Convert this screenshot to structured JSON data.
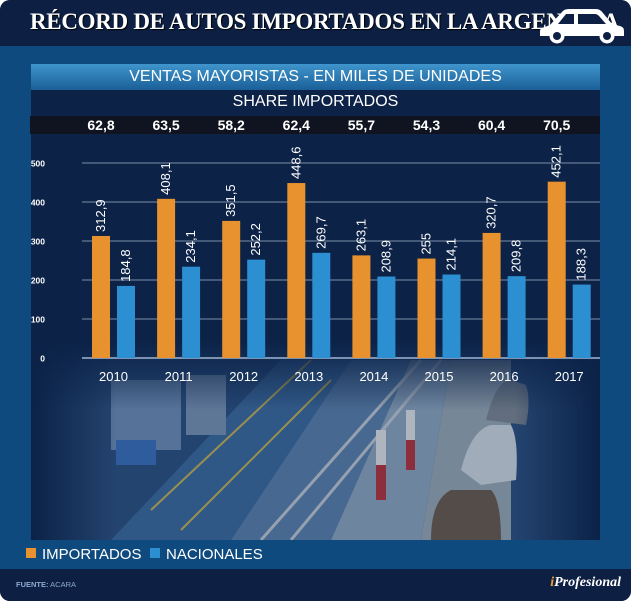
{
  "header": {
    "title": "RÉCORD DE AUTOS IMPORTADOS EN LA ARGENTINA",
    "icon": "car-icon"
  },
  "subtitle": "VENTAS MAYORISTAS - EN MILES DE UNIDADES",
  "share": {
    "label": "SHARE IMPORTADOS",
    "values": [
      "62,8",
      "63,5",
      "58,2",
      "62,4",
      "55,7",
      "54,3",
      "60,4",
      "70,5"
    ]
  },
  "legend": {
    "items": [
      {
        "label": "IMPORTADOS",
        "color": "#e8922f"
      },
      {
        "label": "NACIONALES",
        "color": "#2b8fd1"
      }
    ]
  },
  "footer": {
    "source_label": "FUENTE:",
    "source_value": "ACARA",
    "logo_i": "i",
    "logo_rest": "Profesional"
  },
  "chart_data": {
    "type": "bar",
    "title": "VENTAS MAYORISTAS - EN MILES DE UNIDADES",
    "xlabel": "",
    "ylabel": "",
    "categories": [
      "2010",
      "2011",
      "2012",
      "2013",
      "2014",
      "2015",
      "2016",
      "2017"
    ],
    "series": [
      {
        "name": "IMPORTADOS",
        "color": "#e8922f",
        "values": [
          312.9,
          408.1,
          351.5,
          448.6,
          263.1,
          255,
          320.7,
          452.1
        ],
        "labels": [
          "312,9",
          "408,1",
          "351,5",
          "448,6",
          "263,1",
          "255",
          "320,7",
          "452,1"
        ]
      },
      {
        "name": "NACIONALES",
        "color": "#2b8fd1",
        "values": [
          184.8,
          234.1,
          252.2,
          269.7,
          208.9,
          214.1,
          209.8,
          188.3
        ],
        "labels": [
          "184,8",
          "234,1",
          "252,2",
          "269,7",
          "208,9",
          "214,1",
          "209,8",
          "188,3"
        ]
      }
    ],
    "yticks": [
      "0",
      "100",
      "200",
      "300",
      "400",
      "500"
    ],
    "ylim": [
      0,
      500
    ],
    "grid": true,
    "legend": "bottom-left"
  }
}
